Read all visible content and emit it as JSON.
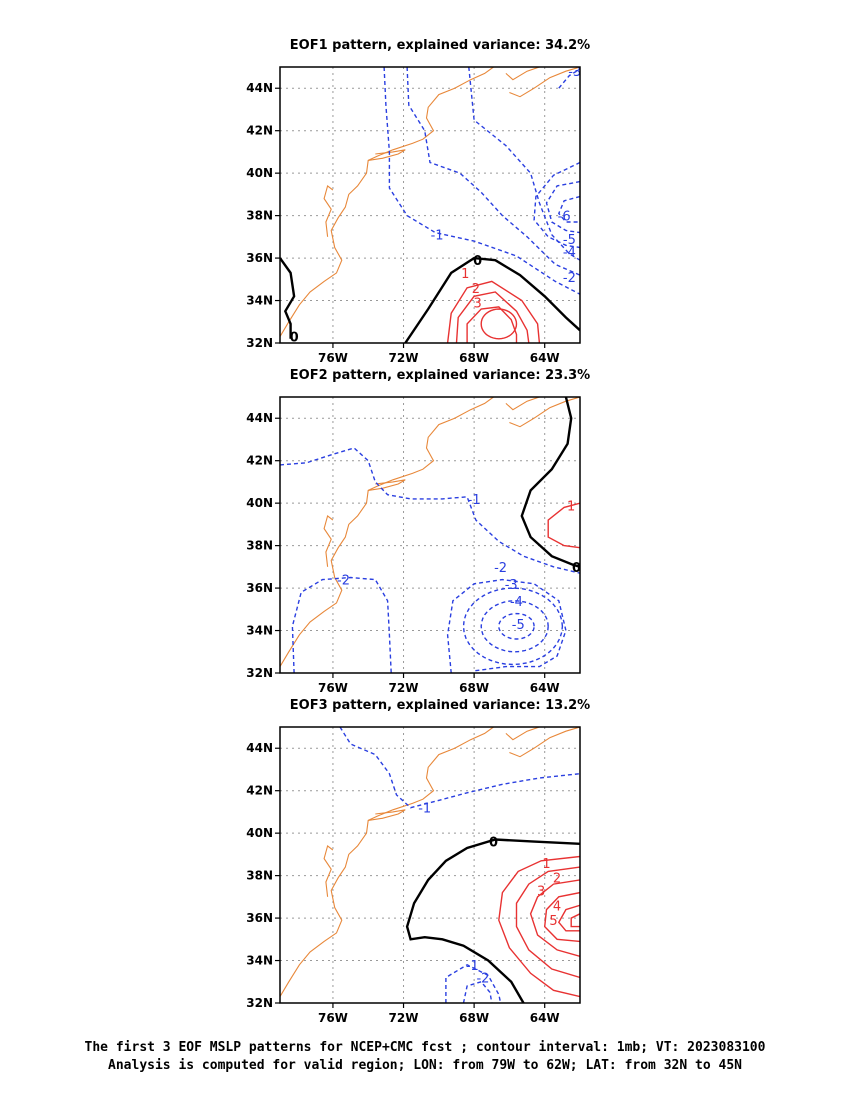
{
  "chart_data": [
    {
      "type": "contour-map",
      "title": "EOF1 pattern, explained variance: 34.2%",
      "x_ticks": [
        "76W",
        "72W",
        "68W",
        "64W"
      ],
      "y_ticks": [
        "32N",
        "34N",
        "36N",
        "38N",
        "40N",
        "42N",
        "44N"
      ],
      "xlim": [
        -79,
        -62
      ],
      "ylim": [
        32,
        45
      ],
      "contour_labels": [
        {
          "text": "-3",
          "lon": -62.3,
          "lat": 44.8,
          "sign": "neg"
        },
        {
          "text": "-1",
          "lon": -70.1,
          "lat": 37.1,
          "sign": "neg"
        },
        {
          "text": "-6",
          "lon": -62.9,
          "lat": 38.0,
          "sign": "neg"
        },
        {
          "text": "-5",
          "lon": -62.6,
          "lat": 36.9,
          "sign": "neg"
        },
        {
          "text": "-4",
          "lon": -62.6,
          "lat": 36.3,
          "sign": "neg"
        },
        {
          "text": "-2",
          "lon": -62.6,
          "lat": 35.1,
          "sign": "neg"
        },
        {
          "text": "0",
          "lon": -67.8,
          "lat": 35.9,
          "sign": "zero"
        },
        {
          "text": "1",
          "lon": -68.5,
          "lat": 35.3,
          "sign": "pos"
        },
        {
          "text": "2",
          "lon": -67.9,
          "lat": 34.6,
          "sign": "pos"
        },
        {
          "text": "3",
          "lon": -67.8,
          "lat": 33.9,
          "sign": "pos"
        },
        {
          "text": "0",
          "lon": -78.2,
          "lat": 32.3,
          "sign": "zero"
        }
      ]
    },
    {
      "type": "contour-map",
      "title": "EOF2 pattern, explained variance: 23.3%",
      "x_ticks": [
        "76W",
        "72W",
        "68W",
        "64W"
      ],
      "y_ticks": [
        "32N",
        "34N",
        "36N",
        "38N",
        "40N",
        "42N",
        "44N"
      ],
      "xlim": [
        -79,
        -62
      ],
      "ylim": [
        32,
        45
      ],
      "contour_labels": [
        {
          "text": "-1",
          "lon": -68.0,
          "lat": 40.2,
          "sign": "neg"
        },
        {
          "text": "1",
          "lon": -62.5,
          "lat": 39.9,
          "sign": "pos"
        },
        {
          "text": "0",
          "lon": -62.2,
          "lat": 37.0,
          "sign": "zero"
        },
        {
          "text": "-2",
          "lon": -75.4,
          "lat": 36.4,
          "sign": "neg"
        },
        {
          "text": "-2",
          "lon": -66.5,
          "lat": 37.0,
          "sign": "neg"
        },
        {
          "text": "-3",
          "lon": -65.9,
          "lat": 36.2,
          "sign": "neg"
        },
        {
          "text": "-4",
          "lon": -65.6,
          "lat": 35.4,
          "sign": "neg"
        },
        {
          "text": "-5",
          "lon": -65.5,
          "lat": 34.3,
          "sign": "neg"
        }
      ]
    },
    {
      "type": "contour-map",
      "title": "EOF3 pattern, explained variance: 13.2%",
      "x_ticks": [
        "76W",
        "72W",
        "68W",
        "64W"
      ],
      "y_ticks": [
        "32N",
        "34N",
        "36N",
        "38N",
        "40N",
        "42N",
        "44N"
      ],
      "xlim": [
        -79,
        -62
      ],
      "ylim": [
        32,
        45
      ],
      "contour_labels": [
        {
          "text": "-1",
          "lon": -70.8,
          "lat": 41.2,
          "sign": "neg"
        },
        {
          "text": "0",
          "lon": -66.9,
          "lat": 39.6,
          "sign": "zero"
        },
        {
          "text": "1",
          "lon": -63.9,
          "lat": 38.6,
          "sign": "pos"
        },
        {
          "text": "2",
          "lon": -63.3,
          "lat": 37.9,
          "sign": "pos"
        },
        {
          "text": "3",
          "lon": -64.2,
          "lat": 37.3,
          "sign": "pos"
        },
        {
          "text": "4",
          "lon": -63.3,
          "lat": 36.6,
          "sign": "pos"
        },
        {
          "text": "5",
          "lon": -63.5,
          "lat": 35.9,
          "sign": "pos"
        },
        {
          "text": "-1",
          "lon": -68.1,
          "lat": 33.8,
          "sign": "neg"
        },
        {
          "text": "-2",
          "lon": -67.5,
          "lat": 33.2,
          "sign": "neg"
        }
      ]
    }
  ],
  "colors": {
    "positive": "#e83232",
    "negative": "#2a3fe0",
    "zero": "#000000",
    "coast": "#e8883a",
    "grid": "#999999"
  },
  "caption": {
    "line1": "The first 3 EOF MSLP patterns for NCEP+CMC fcst ; contour interval: 1mb; VT: 2023083100",
    "line2": "Analysis is computed for valid region; LON: from 79W to 62W; LAT: from 32N to 45N"
  }
}
